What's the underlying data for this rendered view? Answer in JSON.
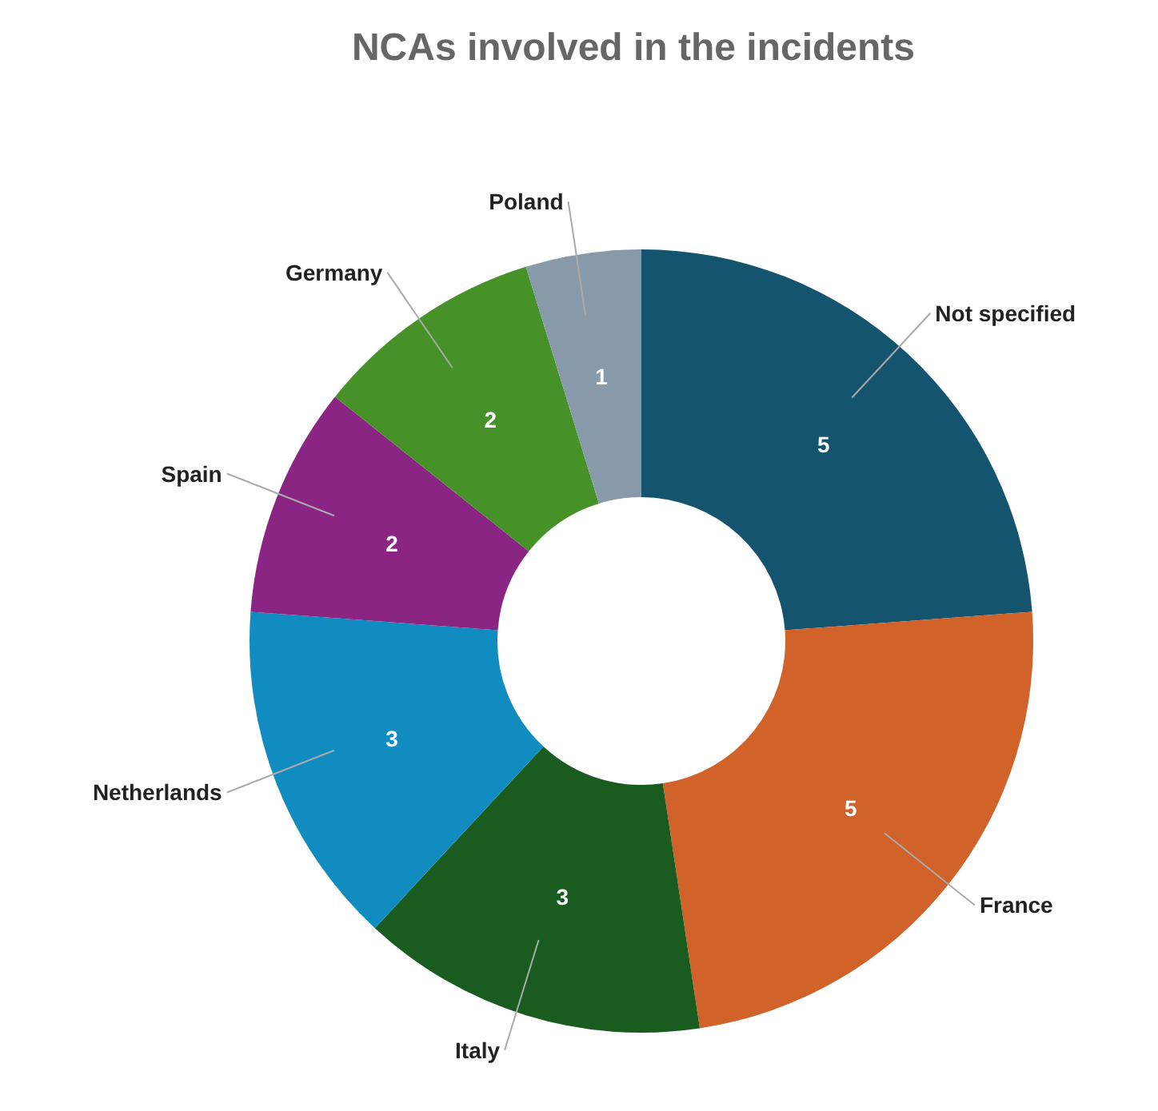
{
  "chart_data": {
    "type": "donut",
    "title": "NCAs involved in the incidents",
    "categories": [
      "Not specified",
      "France",
      "Italy",
      "Netherlands",
      "Spain",
      "Germany",
      "Poland"
    ],
    "values": [
      5,
      5,
      3,
      3,
      2,
      2,
      1
    ],
    "colors": [
      "#14546f",
      "#d0622a",
      "#1a5c20",
      "#118cc0",
      "#8b2583",
      "#479228",
      "#8899aa"
    ],
    "data_labels": true
  }
}
